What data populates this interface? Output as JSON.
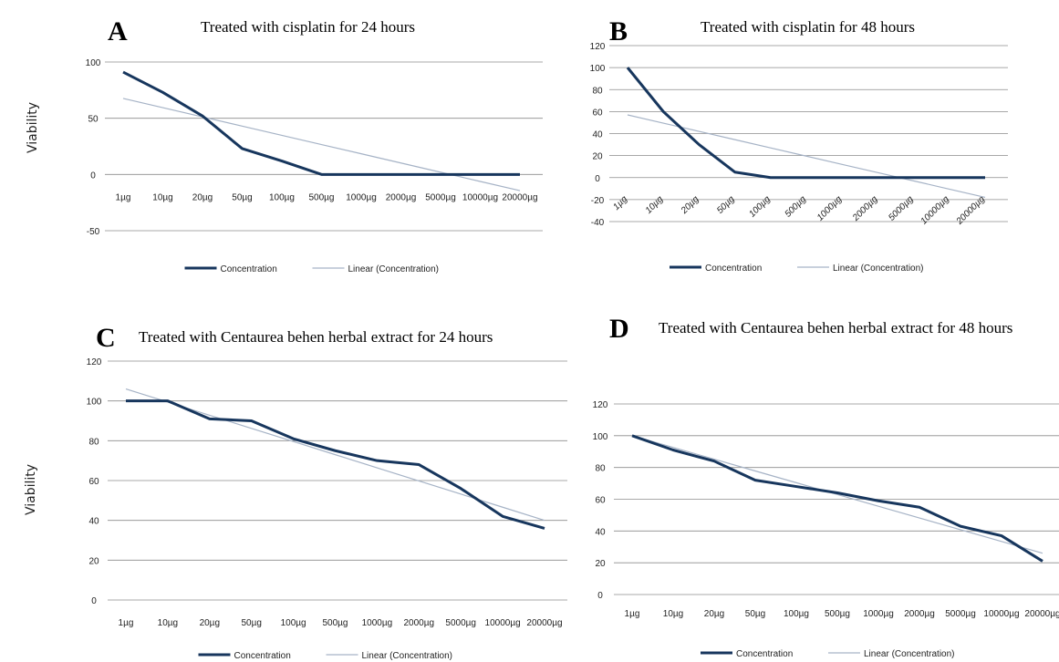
{
  "figure": {
    "ylabel_top": "Viability",
    "ylabel_bottom": "Viability"
  },
  "colors": {
    "series": "#17365d",
    "trend": "#a6b3c6",
    "grid": "#8c8c8c"
  },
  "chart_data": [
    {
      "panel": "A",
      "type": "line",
      "title": "Treated with cisplatin for 24 hours",
      "xlabel": "",
      "ylabel": "",
      "ylim": [
        -50,
        100
      ],
      "yticks": [
        -50,
        0,
        50,
        100
      ],
      "grid": true,
      "x_tick_rotated": false,
      "categories": [
        "1µg",
        "10µg",
        "20µg",
        "50µg",
        "100µg",
        "500µg",
        "1000µg",
        "2000µg",
        "5000µg",
        "10000µg",
        "20000µg"
      ],
      "series": [
        {
          "name": "Concentration",
          "values": [
            91,
            73,
            52,
            23,
            12,
            0,
            0,
            0,
            0,
            0,
            0
          ]
        },
        {
          "name": "Linear (Concentration)",
          "values": [
            67.6,
            59.4,
            51.2,
            43.0,
            34.8,
            26.6,
            18.4,
            10.2,
            2.0,
            -6.2,
            -14.4
          ]
        }
      ],
      "legend": [
        "Concentration",
        "Linear (Concentration)"
      ],
      "legend_position": "bottom"
    },
    {
      "panel": "B",
      "type": "line",
      "title": "Treated with cisplatin for 48 hours",
      "xlabel": "",
      "ylabel": "",
      "ylim": [
        -40,
        120
      ],
      "yticks": [
        -40,
        -20,
        0,
        20,
        40,
        60,
        80,
        100,
        120
      ],
      "grid": true,
      "x_tick_rotated": true,
      "categories": [
        "1µg",
        "10µg",
        "20µg",
        "50µg",
        "100µg",
        "500µg",
        "1000µg",
        "2000µg",
        "5000µg",
        "10000µg",
        "20000µg"
      ],
      "series": [
        {
          "name": "Concentration",
          "values": [
            100,
            60,
            30,
            5,
            0,
            0,
            0,
            0,
            0,
            0,
            0
          ]
        },
        {
          "name": "Linear (Concentration)",
          "values": [
            57,
            49.5,
            42,
            34.5,
            27,
            19.5,
            12,
            4.5,
            -3,
            -10.5,
            -18
          ]
        }
      ],
      "legend": [
        "Concentration",
        "Linear (Concentration)"
      ],
      "legend_position": "bottom"
    },
    {
      "panel": "C",
      "type": "line",
      "title": "Treated with Centaurea behen herbal extract for 24 hours",
      "xlabel": "",
      "ylabel": "",
      "ylim": [
        0,
        120
      ],
      "yticks": [
        0,
        20,
        40,
        60,
        80,
        100,
        120
      ],
      "grid": true,
      "x_tick_rotated": false,
      "categories": [
        "1µg",
        "10µg",
        "20µg",
        "50µg",
        "100µg",
        "500µg",
        "1000µg",
        "2000µg",
        "5000µg",
        "10000µg",
        "20000µg"
      ],
      "series": [
        {
          "name": "Concentration",
          "values": [
            100,
            100,
            91,
            90,
            81,
            75,
            70,
            68,
            56,
            42,
            36
          ]
        },
        {
          "name": "Linear (Concentration)",
          "values": [
            106,
            99.4,
            92.8,
            86.2,
            79.6,
            73,
            66.4,
            59.8,
            53.2,
            46.6,
            40
          ]
        }
      ],
      "legend": [
        "Concentration",
        "Linear (Concentration)"
      ],
      "legend_position": "bottom"
    },
    {
      "panel": "D",
      "type": "line",
      "title": "Treated with Centaurea behen herbal extract for 48 hours",
      "xlabel": "",
      "ylabel": "",
      "ylim": [
        0,
        120
      ],
      "yticks": [
        0,
        20,
        40,
        60,
        80,
        100,
        120
      ],
      "grid": true,
      "x_tick_rotated": false,
      "categories": [
        "1µg",
        "10µg",
        "20µg",
        "50µg",
        "100µg",
        "500µg",
        "1000µg",
        "2000µg",
        "5000µg",
        "10000µg",
        "20000µg"
      ],
      "series": [
        {
          "name": "Concentration",
          "values": [
            100,
            91,
            84,
            72,
            68,
            64,
            59,
            55,
            43,
            37,
            21
          ]
        },
        {
          "name": "Linear (Concentration)",
          "values": [
            100,
            92.6,
            85.2,
            77.8,
            70.4,
            63,
            55.6,
            48.2,
            40.8,
            33.4,
            26
          ]
        }
      ],
      "legend": [
        "Concentration",
        "Linear (Concentration)"
      ],
      "legend_position": "bottom"
    }
  ]
}
